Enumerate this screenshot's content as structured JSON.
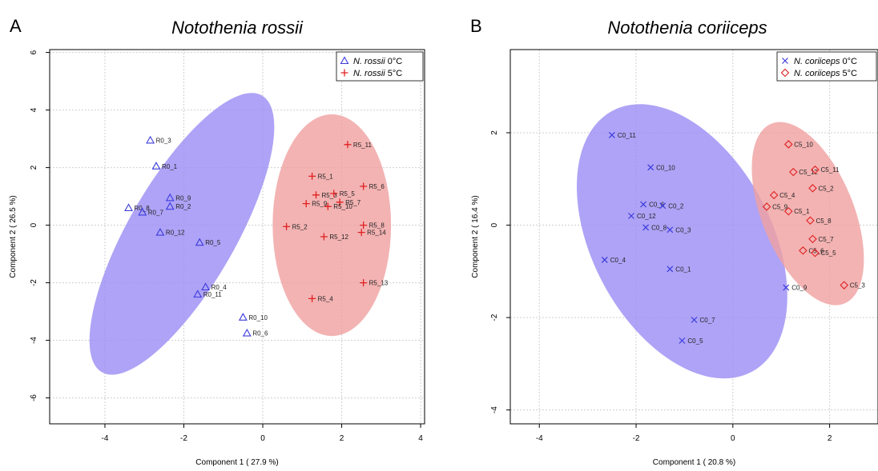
{
  "chart_data": [
    {
      "type": "scatter",
      "panel_letter": "A",
      "title": "Notothenia rossii",
      "xlabel": "Component 1 ( 27.9 %)",
      "ylabel": "Component 2 ( 26.5 %)",
      "xlim": [
        -5.4,
        4.1
      ],
      "ylim": [
        -6.9,
        6.1
      ],
      "xticks": [
        -4,
        -2,
        0,
        2,
        4
      ],
      "yticks": [
        -6,
        -4,
        -2,
        0,
        2,
        4,
        6
      ],
      "xtick_labels": [
        "-4",
        "-2",
        "0",
        "2",
        "4"
      ],
      "ytick_labels": [
        "-6",
        "-4",
        "-2",
        "0",
        "2",
        "4",
        "6"
      ],
      "grid": true,
      "legend_position": "top-right",
      "series": [
        {
          "name": "N. rossii 0°C",
          "marker": "triangle",
          "color": "#3b3bdc",
          "ellipse_color": "#9a8cf4",
          "points": [
            {
              "label": "R0_3",
              "x": -2.85,
              "y": 2.95
            },
            {
              "label": "R0_1",
              "x": -2.7,
              "y": 2.05
            },
            {
              "label": "R0_9",
              "x": -2.35,
              "y": 0.95
            },
            {
              "label": "R0_2",
              "x": -2.35,
              "y": 0.65
            },
            {
              "label": "R0_8",
              "x": -3.4,
              "y": 0.6
            },
            {
              "label": "R0_7",
              "x": -3.05,
              "y": 0.45
            },
            {
              "label": "R0_12",
              "x": -2.6,
              "y": -0.25
            },
            {
              "label": "R0_5",
              "x": -1.6,
              "y": -0.6
            },
            {
              "label": "R0_4",
              "x": -1.45,
              "y": -2.15
            },
            {
              "label": "R0_11",
              "x": -1.65,
              "y": -2.4
            },
            {
              "label": "R0_10",
              "x": -0.5,
              "y": -3.2
            },
            {
              "label": "R0_6",
              "x": -0.4,
              "y": -3.75
            }
          ]
        },
        {
          "name": "N. rossii 5°C",
          "marker": "plus",
          "color": "#e02020",
          "ellipse_color": "#f0a0a0",
          "points": [
            {
              "label": "R5_11",
              "x": 2.15,
              "y": 2.8
            },
            {
              "label": "R5_1",
              "x": 1.25,
              "y": 1.7
            },
            {
              "label": "R5_6",
              "x": 2.55,
              "y": 1.35
            },
            {
              "label": "R5_3",
              "x": 1.35,
              "y": 1.05
            },
            {
              "label": "R5_5",
              "x": 1.8,
              "y": 1.1
            },
            {
              "label": "R5_9",
              "x": 1.1,
              "y": 0.75
            },
            {
              "label": "R5_7",
              "x": 1.95,
              "y": 0.8
            },
            {
              "label": "R5_10",
              "x": 1.65,
              "y": 0.65
            },
            {
              "label": "R5_2",
              "x": 0.6,
              "y": -0.05
            },
            {
              "label": "R5_8",
              "x": 2.55,
              "y": 0.0
            },
            {
              "label": "R5_14",
              "x": 2.5,
              "y": -0.25
            },
            {
              "label": "R5_12",
              "x": 1.55,
              "y": -0.4
            },
            {
              "label": "R5_13",
              "x": 2.55,
              "y": -2.0
            },
            {
              "label": "R5_4",
              "x": 1.25,
              "y": -2.55
            }
          ]
        }
      ],
      "ellipses": [
        {
          "series": 0,
          "cx": -2.05,
          "cy": -0.3,
          "rx": 1.35,
          "ry": 5.55,
          "angle_deg": 30
        },
        {
          "series": 1,
          "cx": 1.75,
          "cy": 0.0,
          "rx": 1.5,
          "ry": 3.85,
          "angle_deg": 0
        }
      ]
    },
    {
      "type": "scatter",
      "panel_letter": "B",
      "title": "Notothenia coriiceps",
      "xlabel": "Component 1 ( 20.8 %)",
      "ylabel": "Component 2 ( 16.4 %)",
      "xlim": [
        -4.6,
        3.0
      ],
      "ylim": [
        -4.3,
        3.8
      ],
      "xticks": [
        -4,
        -2,
        0,
        2
      ],
      "yticks": [
        -4,
        -2,
        0,
        2
      ],
      "xtick_labels": [
        "-4",
        "-2",
        "0",
        "2"
      ],
      "ytick_labels": [
        "-4",
        "-2",
        "0",
        "2"
      ],
      "grid": true,
      "legend_position": "top-right",
      "series": [
        {
          "name": "N. coriiceps 0°C",
          "marker": "cross",
          "color": "#3b3bdc",
          "ellipse_color": "#9a8cf4",
          "points": [
            {
              "label": "C0_11",
              "x": -2.5,
              "y": 1.95
            },
            {
              "label": "C0_10",
              "x": -1.7,
              "y": 1.25
            },
            {
              "label": "C0_6",
              "x": -1.85,
              "y": 0.45
            },
            {
              "label": "C0_2",
              "x": -1.45,
              "y": 0.42
            },
            {
              "label": "C0_12",
              "x": -2.1,
              "y": 0.2
            },
            {
              "label": "C0_8",
              "x": -1.8,
              "y": -0.05
            },
            {
              "label": "C0_3",
              "x": -1.3,
              "y": -0.1
            },
            {
              "label": "C0_4",
              "x": -2.65,
              "y": -0.75
            },
            {
              "label": "C0_1",
              "x": -1.3,
              "y": -0.95
            },
            {
              "label": "C0_7",
              "x": -0.8,
              "y": -2.05
            },
            {
              "label": "C0_5",
              "x": -1.05,
              "y": -2.5
            },
            {
              "label": "C0_9",
              "x": 1.1,
              "y": -1.35
            }
          ]
        },
        {
          "name": "N. coriiceps 5°C",
          "marker": "diamond",
          "color": "#e02020",
          "ellipse_color": "#f0a0a0",
          "points": [
            {
              "label": "C5_10",
              "x": 1.15,
              "y": 1.75
            },
            {
              "label": "C5_12",
              "x": 1.25,
              "y": 1.15
            },
            {
              "label": "C5_11",
              "x": 1.7,
              "y": 1.2
            },
            {
              "label": "C5_2",
              "x": 1.65,
              "y": 0.8
            },
            {
              "label": "C5_4",
              "x": 0.85,
              "y": 0.65
            },
            {
              "label": "C5_9",
              "x": 0.7,
              "y": 0.4
            },
            {
              "label": "C5_1",
              "x": 1.15,
              "y": 0.3
            },
            {
              "label": "C5_8",
              "x": 1.6,
              "y": 0.1
            },
            {
              "label": "C5_7",
              "x": 1.65,
              "y": -0.3
            },
            {
              "label": "C5_6",
              "x": 1.45,
              "y": -0.55
            },
            {
              "label": "C5_5",
              "x": 1.7,
              "y": -0.6
            },
            {
              "label": "C5_3",
              "x": 2.3,
              "y": -1.3
            }
          ]
        }
      ],
      "ellipses": [
        {
          "series": 0,
          "cx": -1.05,
          "cy": -0.35,
          "rx": 1.85,
          "ry": 3.2,
          "angle_deg": -28
        },
        {
          "series": 1,
          "cx": 1.55,
          "cy": 0.25,
          "rx": 0.95,
          "ry": 2.1,
          "angle_deg": -22
        }
      ]
    }
  ]
}
